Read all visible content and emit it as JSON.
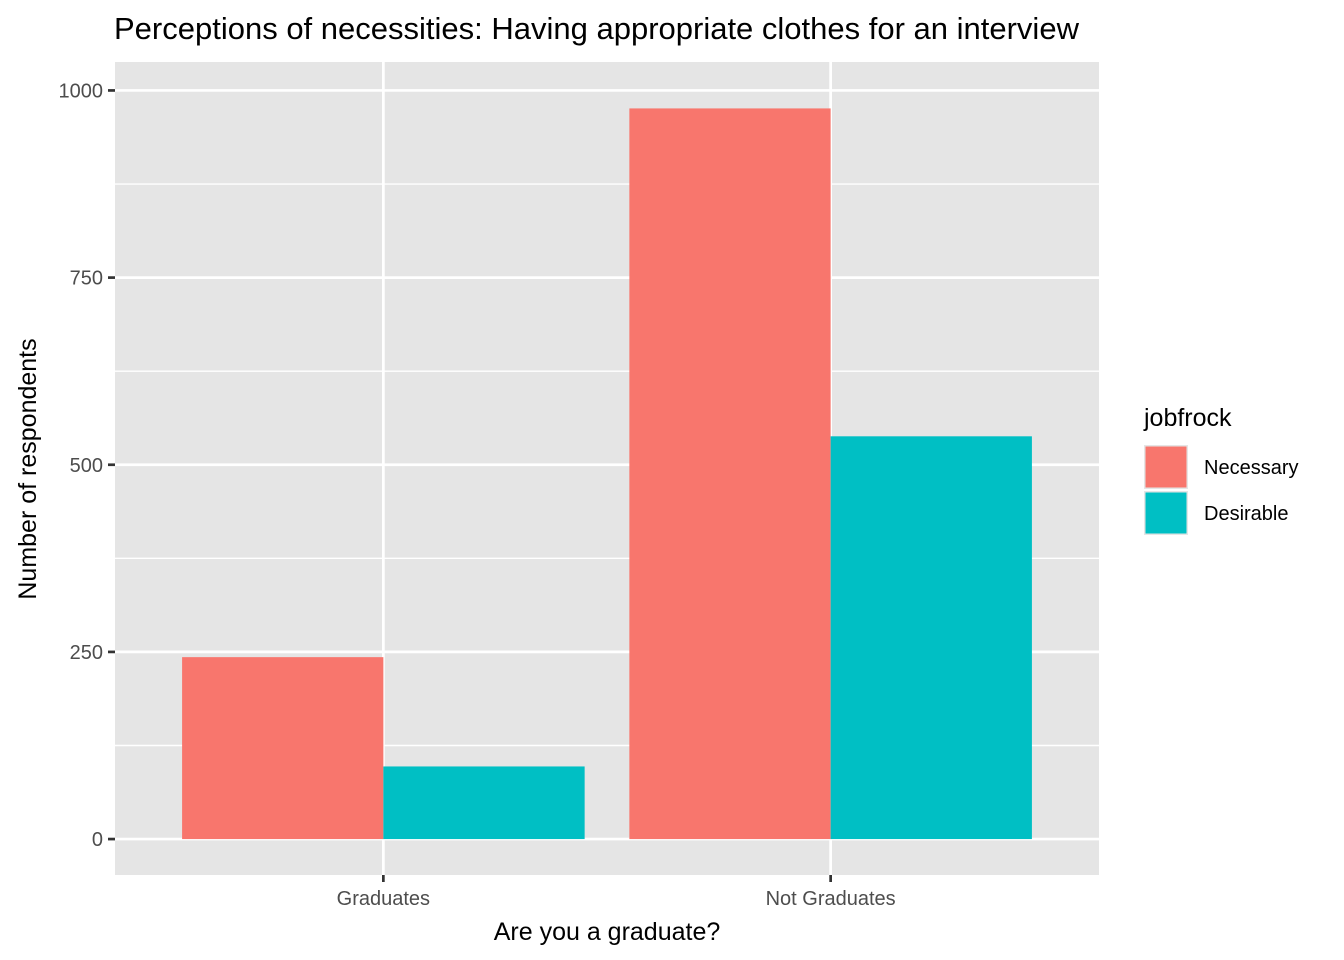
{
  "chart_data": {
    "type": "bar",
    "title": "Perceptions of necessities: Having appropriate clothes for an interview",
    "xlabel": "Are you a graduate?",
    "ylabel": "Number of respondents",
    "categories": [
      "Graduates",
      "Not Graduates"
    ],
    "series": [
      {
        "name": "Necessary",
        "color": "#F8766D",
        "values": [
          243,
          976
        ]
      },
      {
        "name": "Desirable",
        "color": "#00BFC4",
        "values": [
          97,
          538
        ]
      }
    ],
    "ylim": [
      -48,
      1038
    ],
    "yticks": [
      0,
      250,
      500,
      750,
      1000
    ],
    "ytick_labels": [
      "0",
      "250",
      "500",
      "750",
      "1000"
    ],
    "legend": {
      "title": "jobfrock",
      "position": "right"
    },
    "grid": true,
    "colors": {
      "panel_background": "#e5e5e5",
      "gridline": "#ffffff",
      "necessary": "#F8766D",
      "desirable": "#00BFC4"
    }
  }
}
